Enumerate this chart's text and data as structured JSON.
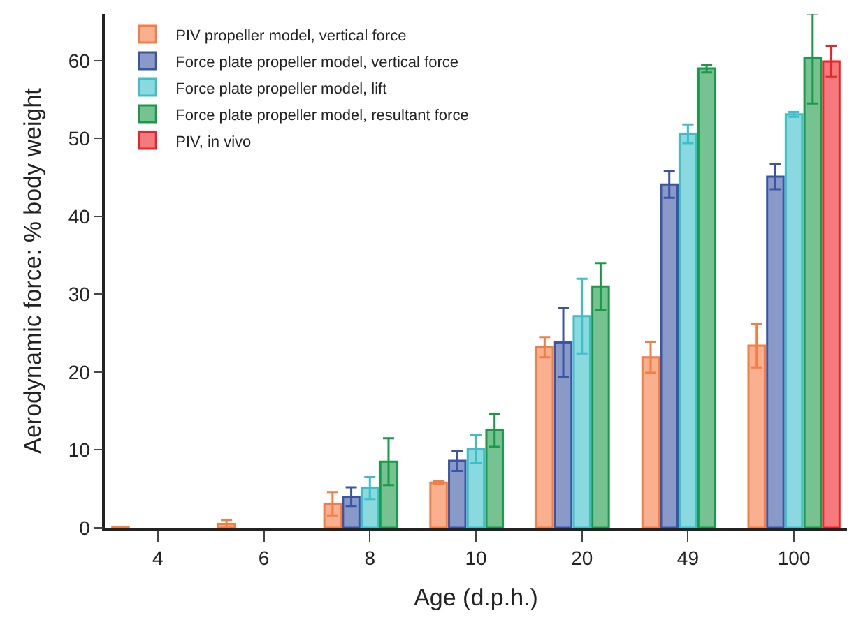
{
  "chart_data": {
    "type": "bar",
    "xlabel": "Age (d.p.h.)",
    "ylabel": "Aerodynamic force: % body weight",
    "categories": [
      "4",
      "6",
      "8",
      "10",
      "20",
      "49",
      "100"
    ],
    "series": [
      {
        "name": "PIV propeller model, vertical force",
        "color": "#f47c45",
        "values": [
          0.1,
          0.5,
          3.1,
          5.8,
          23.2,
          21.9,
          23.4
        ],
        "errors": [
          null,
          0.5,
          1.5,
          0.2,
          1.3,
          2.0,
          2.8
        ]
      },
      {
        "name": "Force plate propeller model, vertical force",
        "color": "#3a55a4",
        "values": [
          null,
          null,
          4.0,
          8.6,
          23.8,
          44.1,
          45.1
        ],
        "errors": [
          null,
          null,
          1.2,
          1.3,
          4.4,
          1.7,
          1.6
        ]
      },
      {
        "name": "Force plate propeller model, lift",
        "color": "#3cbfc8",
        "values": [
          null,
          null,
          5.1,
          10.1,
          27.2,
          50.6,
          53.1
        ],
        "errors": [
          null,
          null,
          1.4,
          1.8,
          4.8,
          1.2,
          0.3
        ]
      },
      {
        "name": "Force plate propeller model, resultant force",
        "color": "#1a9a48",
        "values": [
          null,
          null,
          8.5,
          12.5,
          31.0,
          59.0,
          60.3
        ],
        "errors": [
          null,
          null,
          3.0,
          2.1,
          3.0,
          0.5,
          5.8
        ]
      },
      {
        "name": "PIV, in vivo",
        "color": "#ec2227",
        "values": [
          null,
          null,
          null,
          null,
          null,
          null,
          59.9
        ],
        "errors": [
          null,
          null,
          null,
          null,
          null,
          null,
          2.0
        ]
      }
    ],
    "ylim": [
      0,
      66
    ],
    "yticks": [
      0,
      10,
      20,
      30,
      40,
      50,
      60
    ],
    "legend": "top left"
  }
}
